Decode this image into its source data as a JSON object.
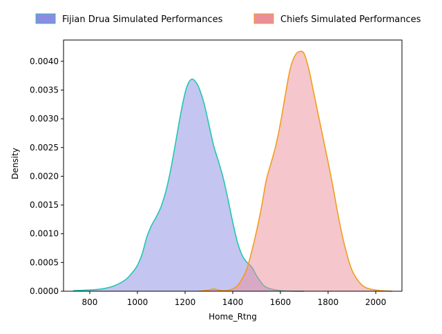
{
  "chart_data": {
    "type": "area",
    "title": "",
    "xlabel": "Home_Rtng",
    "ylabel": "Density",
    "xlim": [
      690,
      2110
    ],
    "ylim": [
      0,
      0.00437
    ],
    "x_ticks": [
      800,
      1000,
      1200,
      1400,
      1600,
      1800,
      2000
    ],
    "x_tick_labels": [
      "800",
      "1000",
      "1200",
      "1400",
      "1600",
      "1800",
      "2000"
    ],
    "y_ticks": [
      0,
      0.0005,
      0.001,
      0.0015,
      0.002,
      0.0025,
      0.003,
      0.0035,
      0.004
    ],
    "y_tick_labels": [
      "0.0000",
      "0.0005",
      "0.0010",
      "0.0015",
      "0.0020",
      "0.0025",
      "0.0030",
      "0.0035",
      "0.0040"
    ],
    "grid": false,
    "legend_position": "top, above plot",
    "series": [
      {
        "name": "Fijian Drua Simulated Performances",
        "fill_color": "#8b8be3",
        "line_color": "#1fc7b0",
        "x": [
          730,
          790,
          850,
          900,
          950,
          980,
          1000,
          1020,
          1040,
          1060,
          1080,
          1100,
          1120,
          1140,
          1160,
          1180,
          1200,
          1215,
          1230,
          1245,
          1260,
          1280,
          1300,
          1320,
          1340,
          1360,
          1380,
          1400,
          1420,
          1440,
          1460,
          1480,
          1500,
          1530,
          1560,
          1600,
          1650,
          1700
        ],
        "y": [
          1e-05,
          2e-05,
          4e-05,
          9e-05,
          0.0002,
          0.00033,
          0.00045,
          0.00065,
          0.00095,
          0.00115,
          0.0013,
          0.00148,
          0.00175,
          0.00212,
          0.00258,
          0.00305,
          0.00345,
          0.00363,
          0.00369,
          0.00364,
          0.00352,
          0.00326,
          0.0029,
          0.00253,
          0.00226,
          0.00197,
          0.0016,
          0.0012,
          0.00085,
          0.00062,
          0.0005,
          0.00042,
          0.00027,
          0.0001,
          4e-05,
          1e-05,
          2.5e-06,
          0.0
        ]
      },
      {
        "name": "Chiefs Simulated Performances",
        "fill_color": "#eb8e99",
        "line_color": "#f39c1a",
        "x": [
          1260,
          1300,
          1320,
          1340,
          1370,
          1400,
          1420,
          1440,
          1460,
          1480,
          1500,
          1520,
          1540,
          1560,
          1580,
          1600,
          1620,
          1640,
          1660,
          1680,
          1700,
          1720,
          1740,
          1760,
          1780,
          1800,
          1820,
          1840,
          1860,
          1880,
          1900,
          1930,
          1960,
          2000,
          2040,
          2070
        ],
        "y": [
          0.0,
          2e-05,
          4e-05,
          2e-05,
          1e-05,
          4e-05,
          0.0001,
          0.00022,
          0.0004,
          0.0007,
          0.00105,
          0.00145,
          0.00192,
          0.00222,
          0.00252,
          0.00292,
          0.0034,
          0.00385,
          0.00409,
          0.00417,
          0.00413,
          0.00385,
          0.00345,
          0.00305,
          0.00265,
          0.00225,
          0.00183,
          0.00137,
          0.00096,
          0.00063,
          0.00037,
          0.00016,
          6e-05,
          2e-05,
          5e-06,
          0.0
        ]
      }
    ]
  }
}
